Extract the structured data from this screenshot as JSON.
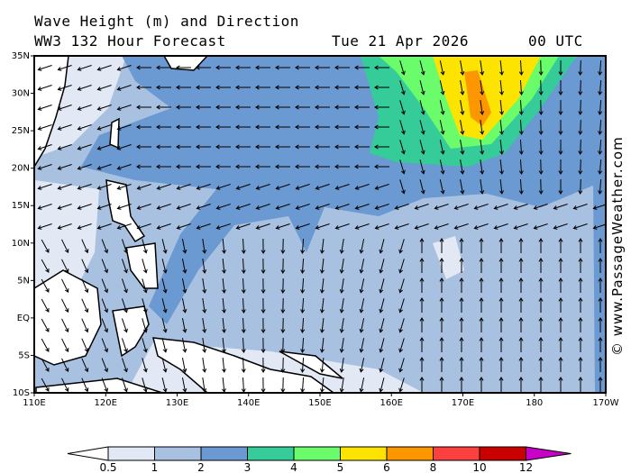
{
  "header": {
    "title": "Wave Height (m) and Direction",
    "subtitle": "WW3 132 Hour Forecast",
    "date": "Tue 21 Apr 2026",
    "time": "00 UTC"
  },
  "map": {
    "lat_labels": [
      "35N",
      "30N",
      "25N",
      "20N",
      "15N",
      "10N",
      "5N",
      "EQ",
      "5S",
      "10S"
    ],
    "lon_labels": [
      "110E",
      "120E",
      "130E",
      "140E",
      "150E",
      "160E",
      "170E",
      "180",
      "170W"
    ],
    "extent": {
      "lon_west": "110E",
      "lon_east": "170W",
      "lat_north": "35N",
      "lat_south": "10S"
    }
  },
  "watermark": "© www.PassageWeather.com",
  "colorbar": {
    "unit": "m",
    "labels": [
      "0.5",
      "1",
      "2",
      "3",
      "4",
      "5",
      "6",
      "8",
      "10",
      "12"
    ],
    "colors": [
      "#e2e9f4",
      "#a9c1e1",
      "#6b99d1",
      "#35cc99",
      "#6bfc6b",
      "#fce300",
      "#fc9700",
      "#fc4040",
      "#c80000",
      "#c800c8"
    ]
  }
}
